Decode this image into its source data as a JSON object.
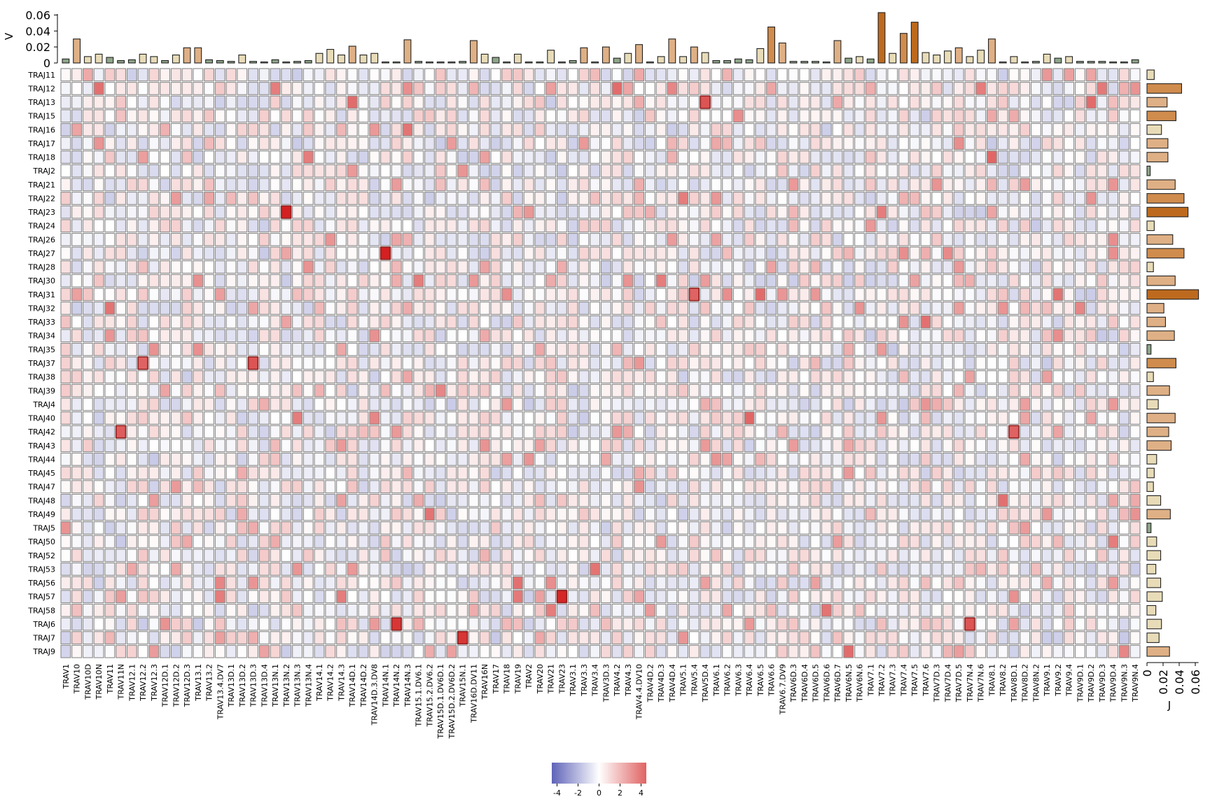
{
  "chart_data": {
    "type": "heatmap",
    "title": "",
    "top_axis_label": "V",
    "right_axis_label": "J",
    "columns": [
      "TRAV1",
      "TRAV10",
      "TRAV10D",
      "TRAV10N",
      "TRAV11",
      "TRAV11N",
      "TRAV12.1",
      "TRAV12.2",
      "TRAV12.3",
      "TRAV12D.1",
      "TRAV12D.2",
      "TRAV12D.3",
      "TRAV13.1",
      "TRAV13.2",
      "TRAV13.4.DV7",
      "TRAV13D.1",
      "TRAV13D.2",
      "TRAV13D.3",
      "TRAV13D.4",
      "TRAV13N.1",
      "TRAV13N.2",
      "TRAV13N.3",
      "TRAV13N.4",
      "TRAV14.1",
      "TRAV14.2",
      "TRAV14.3",
      "TRAV14D.1",
      "TRAV14D.2",
      "TRAV14D.3.DV8",
      "TRAV14N.1",
      "TRAV14N.2",
      "TRAV14N.3",
      "TRAV15.1.DV6.1",
      "TRAV15.2.DV6.2",
      "TRAV15D.1.DV6D.1",
      "TRAV15D.2.DV6D.2",
      "TRAV15N.1",
      "TRAV16D.DV11",
      "TRAV16N",
      "TRAV17",
      "TRAV18",
      "TRAV19",
      "TRAV2",
      "TRAV20",
      "TRAV21",
      "TRAV23",
      "TRAV3.1",
      "TRAV3.3",
      "TRAV3.4",
      "TRAV3D.3",
      "TRAV4.2",
      "TRAV4.3",
      "TRAV4.4.DV10",
      "TRAV4D.2",
      "TRAV4D.3",
      "TRAV4D.4",
      "TRAV5.1",
      "TRAV5.4",
      "TRAV5D.4",
      "TRAV6.1",
      "TRAV6.2",
      "TRAV6.3",
      "TRAV6.4",
      "TRAV6.5",
      "TRAV6.6",
      "TRAV6.7.DV9",
      "TRAV6D.3",
      "TRAV6D.4",
      "TRAV6D.5",
      "TRAV6D.6",
      "TRAV6D.7",
      "TRAV6N.5",
      "TRAV6N.6",
      "TRAV7.1",
      "TRAV7.2",
      "TRAV7.3",
      "TRAV7.4",
      "TRAV7.5",
      "TRAV7.6",
      "TRAV7D.3",
      "TRAV7D.4",
      "TRAV7D.5",
      "TRAV7N.4",
      "TRAV7N.6",
      "TRAV8.1",
      "TRAV8.2",
      "TRAV8D.1",
      "TRAV8D.2",
      "TRAV8N.2",
      "TRAV9.1",
      "TRAV9.2",
      "TRAV9.4",
      "TRAV9D.1",
      "TRAV9D.2",
      "TRAV9D.3",
      "TRAV9D.4",
      "TRAV9N.3",
      "TRAV9N.4"
    ],
    "rows": [
      "TRAJ11",
      "TRAJ12",
      "TRAJ13",
      "TRAJ15",
      "TRAJ16",
      "TRAJ17",
      "TRAJ18",
      "TRAJ2",
      "TRAJ21",
      "TRAJ22",
      "TRAJ23",
      "TRAJ24",
      "TRAJ26",
      "TRAJ27",
      "TRAJ28",
      "TRAJ30",
      "TRAJ31",
      "TRAJ32",
      "TRAJ33",
      "TRAJ34",
      "TRAJ35",
      "TRAJ37",
      "TRAJ38",
      "TRAJ39",
      "TRAJ4",
      "TRAJ40",
      "TRAJ42",
      "TRAJ43",
      "TRAJ44",
      "TRAJ45",
      "TRAJ47",
      "TRAJ48",
      "TRAJ49",
      "TRAJ5",
      "TRAJ50",
      "TRAJ52",
      "TRAJ53",
      "TRAJ56",
      "TRAJ57",
      "TRAJ58",
      "TRAJ6",
      "TRAJ7",
      "TRAJ9"
    ],
    "v_usage": [
      0.005,
      0.03,
      0.008,
      0.011,
      0.007,
      0.003,
      0.004,
      0.011,
      0.008,
      0.003,
      0.01,
      0.019,
      0.019,
      0.004,
      0.003,
      0.002,
      0.01,
      0.002,
      0.001,
      0.004,
      0.001,
      0.002,
      0.003,
      0.012,
      0.017,
      0.01,
      0.021,
      0.01,
      0.012,
      0.001,
      0.001,
      0.029,
      0.002,
      0.001,
      0.001,
      0.001,
      0.002,
      0.028,
      0.011,
      0.007,
      0.001,
      0.011,
      0.001,
      0.001,
      0.016,
      0.001,
      0.003,
      0.019,
      0.001,
      0.02,
      0.006,
      0.012,
      0.023,
      0.001,
      0.008,
      0.03,
      0.008,
      0.02,
      0.013,
      0.003,
      0.003,
      0.005,
      0.004,
      0.018,
      0.045,
      0.025,
      0.002,
      0.002,
      0.002,
      0.001,
      0.028,
      0.006,
      0.008,
      0.005,
      0.063,
      0.012,
      0.037,
      0.051,
      0.013,
      0.01,
      0.015,
      0.019,
      0.008,
      0.016,
      0.03,
      0.001,
      0.008,
      0.001,
      0.002,
      0.011,
      0.006,
      0.008,
      0.002,
      0.002,
      0.002,
      0.001,
      0.001,
      0.004
    ],
    "j_usage": [
      0.009,
      0.043,
      0.025,
      0.036,
      0.018,
      0.026,
      0.026,
      0.004,
      0.035,
      0.046,
      0.051,
      0.009,
      0.032,
      0.046,
      0.008,
      0.035,
      0.064,
      0.021,
      0.023,
      0.034,
      0.005,
      0.036,
      0.008,
      0.028,
      0.014,
      0.035,
      0.027,
      0.03,
      0.012,
      0.009,
      0.008,
      0.017,
      0.029,
      0.005,
      0.012,
      0.017,
      0.011,
      0.017,
      0.019,
      0.011,
      0.018,
      0.015,
      0.028
    ],
    "top_ticks": [
      "0",
      "0.02",
      "0.04",
      "0.06"
    ],
    "right_ticks": [
      "0",
      "0.02",
      "0.04",
      "0.06"
    ],
    "colorbar": {
      "ticks": [
        "-4",
        "-2",
        "0",
        "2",
        "4"
      ],
      "range": [
        -4.5,
        4.5
      ]
    },
    "colors": {
      "low": "#5f63b8",
      "mid": "#ffffff",
      "high": "#e06363",
      "max": "#d42020"
    },
    "hot_cells": [
      {
        "row": "TRAJ12",
        "col": "TRAV10N",
        "z": 3.3
      },
      {
        "row": "TRAJ12",
        "col": "TRAV13N.1",
        "z": 3.0
      },
      {
        "row": "TRAJ12",
        "col": "TRAV14N.3",
        "z": 2.6
      },
      {
        "row": "TRAJ12",
        "col": "TRAV4.2",
        "z": 3.4
      },
      {
        "row": "TRAJ12",
        "col": "TRAV4D.4",
        "z": 2.8
      },
      {
        "row": "TRAJ12",
        "col": "TRAV7N.6",
        "z": 3.0
      },
      {
        "row": "TRAJ12",
        "col": "TRAV9D.3",
        "z": 3.1
      },
      {
        "row": "TRAJ12",
        "col": "TRAV9N.4",
        "z": 2.5
      },
      {
        "row": "TRAJ12",
        "col": "TRAV9N.3",
        "z": 1.8
      },
      {
        "row": "TRAJ13",
        "col": "TRAV14D.1",
        "z": 3.4
      },
      {
        "row": "TRAJ13",
        "col": "TRAV5D.4",
        "z": 3.8
      },
      {
        "row": "TRAJ13",
        "col": "TRAV9D.2",
        "z": 3.4
      },
      {
        "row": "TRAJ13",
        "col": "TRAV6D.7",
        "z": 2.0
      },
      {
        "row": "TRAJ15",
        "col": "TRAV6.3",
        "z": 2.6
      },
      {
        "row": "TRAJ16",
        "col": "TRAV14N.3",
        "z": 3.2
      },
      {
        "row": "TRAJ17",
        "col": "TRAV15D.2.DV6D.2",
        "z": 2.3
      },
      {
        "row": "TRAJ17",
        "col": "TRAV7D.5",
        "z": 2.6
      },
      {
        "row": "TRAJ18",
        "col": "TRAV13N.4",
        "z": 3.0
      },
      {
        "row": "TRAJ18",
        "col": "TRAV8.1",
        "z": 3.5
      },
      {
        "row": "TRAJ21",
        "col": "TRAV7D.3",
        "z": 2.5
      },
      {
        "row": "TRAJ21",
        "col": "TRAV8D.2",
        "z": 2.3
      },
      {
        "row": "TRAJ22",
        "col": "TRAV5.1",
        "z": 3.0
      },
      {
        "row": "TRAJ22",
        "col": "TRAV9D.2",
        "z": 2.5
      },
      {
        "row": "TRAJ23",
        "col": "TRAV13N.2",
        "z": 4.5
      },
      {
        "row": "TRAJ23",
        "col": "TRAV7.2",
        "z": 3.0
      },
      {
        "row": "TRAJ27",
        "col": "TRAV14N.1",
        "z": 4.5
      },
      {
        "row": "TRAJ27",
        "col": "TRAV7.4",
        "z": 2.6
      },
      {
        "row": "TRAJ27",
        "col": "TRAV7D.4",
        "z": 2.7
      },
      {
        "row": "TRAJ26",
        "col": "TRAV9D.4",
        "z": 2.6
      },
      {
        "row": "TRAJ30",
        "col": "TRAV15.1.DV6.1",
        "z": 3.0
      },
      {
        "row": "TRAJ30",
        "col": "TRAV4D.3",
        "z": 3.0
      },
      {
        "row": "TRAJ30",
        "col": "TRAV4.3",
        "z": 2.5
      },
      {
        "row": "TRAJ31",
        "col": "TRAV5.4",
        "z": 3.6
      },
      {
        "row": "TRAJ31",
        "col": "TRAV6.5",
        "z": 3.4
      },
      {
        "row": "TRAJ31",
        "col": "TRAV9.2",
        "z": 3.2
      },
      {
        "row": "TRAJ31",
        "col": "TRAV18",
        "z": 2.6
      },
      {
        "row": "TRAJ32",
        "col": "TRAV11",
        "z": 3.2
      },
      {
        "row": "TRAJ32",
        "col": "TRAV9D.1",
        "z": 2.8
      },
      {
        "row": "TRAJ33",
        "col": "TRAV7.6",
        "z": 3.3
      },
      {
        "row": "TRAJ37",
        "col": "TRAV12.2",
        "z": 3.6
      },
      {
        "row": "TRAJ37",
        "col": "TRAV13D.3",
        "z": 3.8
      },
      {
        "row": "TRAJ39",
        "col": "TRAV15D.1.DV6D.1",
        "z": 2.8
      },
      {
        "row": "TRAJ40",
        "col": "TRAV13N.3",
        "z": 3.0
      },
      {
        "row": "TRAJ40",
        "col": "TRAV14D.3.DV8",
        "z": 2.8
      },
      {
        "row": "TRAJ40",
        "col": "TRAV6.4",
        "z": 3.5
      },
      {
        "row": "TRAJ42",
        "col": "TRAV11N",
        "z": 3.7
      },
      {
        "row": "TRAJ42",
        "col": "TRAV8D.1",
        "z": 3.6
      },
      {
        "row": "TRAJ48",
        "col": "TRAV8.2",
        "z": 3.3
      },
      {
        "row": "TRAJ49",
        "col": "TRAV15.2.DV6.2",
        "z": 3.2
      },
      {
        "row": "TRAJ50",
        "col": "TRAV9D.4",
        "z": 3.0
      },
      {
        "row": "TRAJ53",
        "col": "TRAV3.4",
        "z": 3.2
      },
      {
        "row": "TRAJ56",
        "col": "TRAV13.4.DV7",
        "z": 2.8
      },
      {
        "row": "TRAJ56",
        "col": "TRAV19",
        "z": 3.3
      },
      {
        "row": "TRAJ56",
        "col": "TRAV21",
        "z": 2.6
      },
      {
        "row": "TRAJ57",
        "col": "TRAV13.4.DV7",
        "z": 3.0
      },
      {
        "row": "TRAJ57",
        "col": "TRAV14.3",
        "z": 3.0
      },
      {
        "row": "TRAJ57",
        "col": "TRAV19",
        "z": 3.1
      },
      {
        "row": "TRAJ57",
        "col": "TRAV23",
        "z": 4.4
      },
      {
        "row": "TRAJ58",
        "col": "TRAV6D.6",
        "z": 3.2
      },
      {
        "row": "TRAJ58",
        "col": "TRAV21",
        "z": 3.0
      },
      {
        "row": "TRAJ6",
        "col": "TRAV14N.2",
        "z": 4.2
      },
      {
        "row": "TRAJ6",
        "col": "TRAV7N.4",
        "z": 3.8
      },
      {
        "row": "TRAJ6",
        "col": "TRAV12D.1",
        "z": 2.5
      },
      {
        "row": "TRAJ7",
        "col": "TRAV15N.1",
        "z": 4.2
      },
      {
        "row": "TRAJ9",
        "col": "TRAV6N.5",
        "z": 3.4
      },
      {
        "row": "TRAJ9",
        "col": "TRAV9N.3",
        "z": 2.8
      },
      {
        "row": "TRAJ43",
        "col": "TRAV16N",
        "z": 2.5
      },
      {
        "row": "TRAJ43",
        "col": "TRAV6D.3",
        "z": 2.3
      },
      {
        "row": "TRAJ34",
        "col": "TRAV9.2",
        "z": 2.6
      },
      {
        "row": "TRAJ22",
        "col": "TRAV7.4",
        "z": 1.8
      },
      {
        "row": "TRAJ23",
        "col": "TRAV2",
        "z": 2.4
      },
      {
        "row": "TRAJ31",
        "col": "TRAV10",
        "z": 2.2
      },
      {
        "row": "TRAJ31",
        "col": "TRAV6D.5",
        "z": 2.4
      },
      {
        "row": "TRAJ31",
        "col": "TRAV6.2",
        "z": 2.6
      },
      {
        "row": "TRAJ35",
        "col": "TRAV20",
        "z": 2.0
      },
      {
        "row": "TRAJ13",
        "col": "TRAV9D.4",
        "z": 1.5
      },
      {
        "row": "TRAJ9",
        "col": "TRAV15D.2.DV6D.2",
        "z": 2.2
      }
    ]
  }
}
